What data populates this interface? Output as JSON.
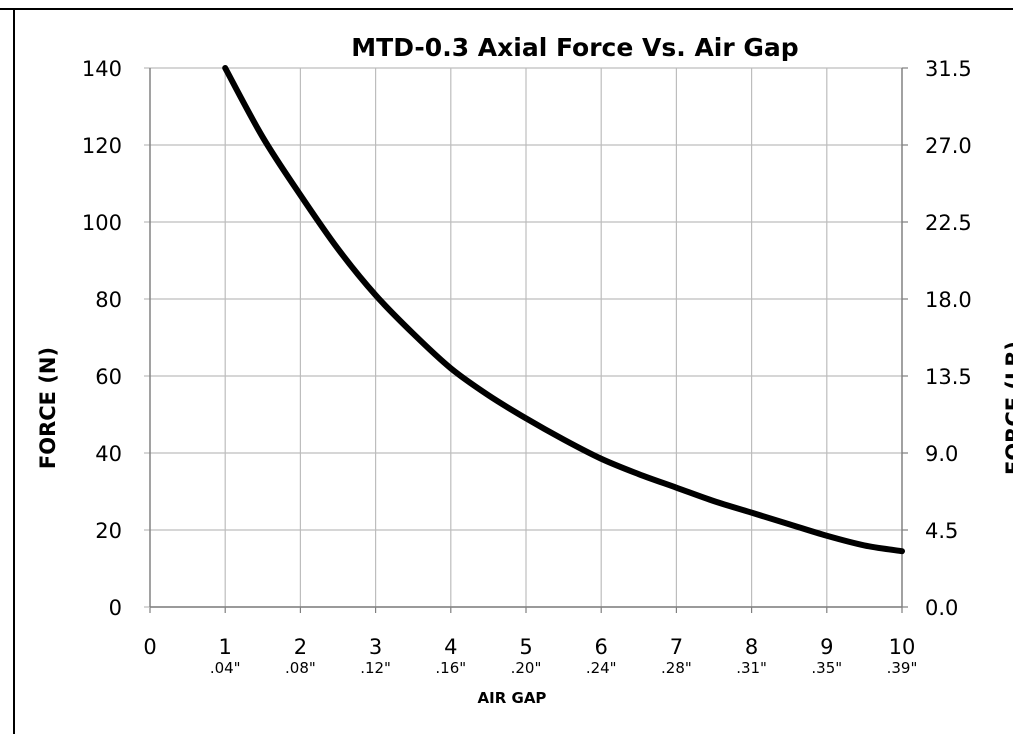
{
  "chart_data": {
    "type": "line",
    "title": "MTD-0.3  Axial Force Vs. Air Gap",
    "xlabel": "AIR GAP",
    "ylabel": "FORCE (N)",
    "y2label": "FORCE (LB)",
    "xlim": [
      0,
      10
    ],
    "ylim": [
      0,
      140
    ],
    "y2lim": [
      0.0,
      31.5
    ],
    "grid": true,
    "x_ticks": [
      "0",
      "1",
      "2",
      "3",
      "4",
      "5",
      "6",
      "7",
      "8",
      "9",
      "10"
    ],
    "x_subticks": [
      "",
      ".04\"",
      ".08\"",
      ".12\"",
      ".16\"",
      ".20\"",
      ".24\"",
      ".28\"",
      ".31\"",
      ".35\"",
      ".39\""
    ],
    "y_ticks": [
      "0",
      "20",
      "40",
      "60",
      "80",
      "100",
      "120",
      "140"
    ],
    "y2_ticks": [
      "0.0",
      "4.5",
      "9.0",
      "13.5",
      "18.0",
      "22.5",
      "27.0",
      "31.5"
    ],
    "series": [
      {
        "color": "#000000",
        "x": [
          1.0,
          1.5,
          2.0,
          2.5,
          3.0,
          3.5,
          4.0,
          4.5,
          5.0,
          5.5,
          6.0,
          6.5,
          7.0,
          7.5,
          8.0,
          8.5,
          9.0,
          9.5,
          10.0
        ],
        "y": [
          140,
          122,
          107,
          93,
          81,
          71,
          62,
          55,
          49,
          43.5,
          38.5,
          34.5,
          31,
          27.5,
          24.5,
          21.5,
          18.5,
          16,
          14.5
        ]
      }
    ]
  }
}
